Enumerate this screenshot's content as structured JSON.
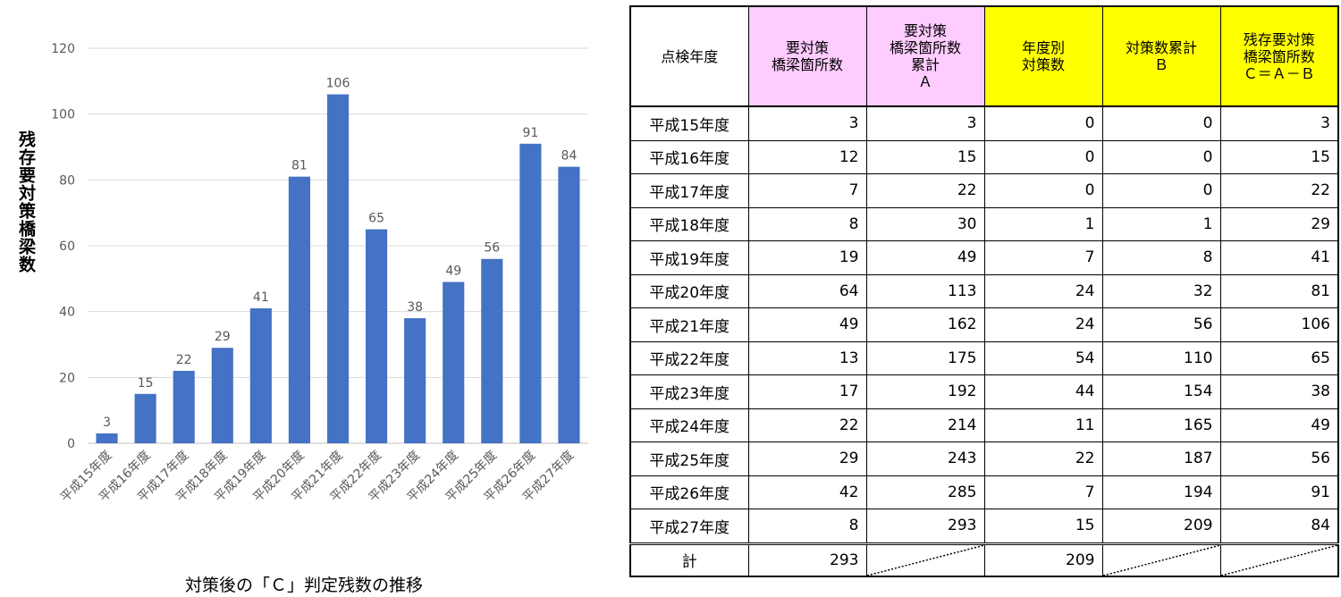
{
  "chart_data": {
    "type": "bar",
    "title": "",
    "caption": "対策後の「Ｃ」判定残数の推移",
    "ylabel": "残存要対策橋梁数",
    "xlabel": "",
    "categories": [
      "平成15年度",
      "平成16年度",
      "平成17年度",
      "平成18年度",
      "平成19年度",
      "平成20年度",
      "平成21年度",
      "平成22年度",
      "平成23年度",
      "平成24年度",
      "平成25年度",
      "平成26年度",
      "平成27年度"
    ],
    "values": [
      3,
      15,
      22,
      29,
      41,
      81,
      106,
      65,
      38,
      49,
      56,
      91,
      84
    ],
    "ylim": [
      0,
      120
    ],
    "yticks": [
      0,
      20,
      40,
      60,
      80,
      100,
      120
    ],
    "grid": true,
    "legend": "none",
    "bar_color": "#4472c4"
  },
  "table": {
    "headers": [
      {
        "lines": [
          "点検年度"
        ],
        "color": ""
      },
      {
        "lines": [
          "要対策",
          "橋梁箇所数"
        ],
        "color": "#ffccff"
      },
      {
        "lines": [
          "要対策",
          "橋梁箇所数",
          "累計",
          "Ａ"
        ],
        "color": "#ffccff"
      },
      {
        "lines": [
          "年度別",
          "対策数"
        ],
        "color": "#ffff00"
      },
      {
        "lines": [
          "対策数累計",
          "Ｂ"
        ],
        "color": "#ffff00"
      },
      {
        "lines": [
          "残存要対策",
          "橋梁箇所数",
          "Ｃ＝Ａ－Ｂ"
        ],
        "color": "#ffff00"
      }
    ],
    "rows": [
      [
        "平成15年度",
        "3",
        "3",
        "0",
        "0",
        "3"
      ],
      [
        "平成16年度",
        "12",
        "15",
        "0",
        "0",
        "15"
      ],
      [
        "平成17年度",
        "7",
        "22",
        "0",
        "0",
        "22"
      ],
      [
        "平成18年度",
        "8",
        "30",
        "1",
        "1",
        "29"
      ],
      [
        "平成19年度",
        "19",
        "49",
        "7",
        "8",
        "41"
      ],
      [
        "平成20年度",
        "64",
        "113",
        "24",
        "32",
        "81"
      ],
      [
        "平成21年度",
        "49",
        "162",
        "24",
        "56",
        "106"
      ],
      [
        "平成22年度",
        "13",
        "175",
        "54",
        "110",
        "65"
      ],
      [
        "平成23年度",
        "17",
        "192",
        "44",
        "154",
        "38"
      ],
      [
        "平成24年度",
        "22",
        "214",
        "11",
        "165",
        "49"
      ],
      [
        "平成25年度",
        "29",
        "243",
        "22",
        "187",
        "56"
      ],
      [
        "平成26年度",
        "42",
        "285",
        "7",
        "194",
        "91"
      ],
      [
        "平成27年度",
        "8",
        "293",
        "15",
        "209",
        "84"
      ]
    ],
    "total": [
      "計",
      "293",
      "",
      "209",
      "",
      ""
    ]
  }
}
